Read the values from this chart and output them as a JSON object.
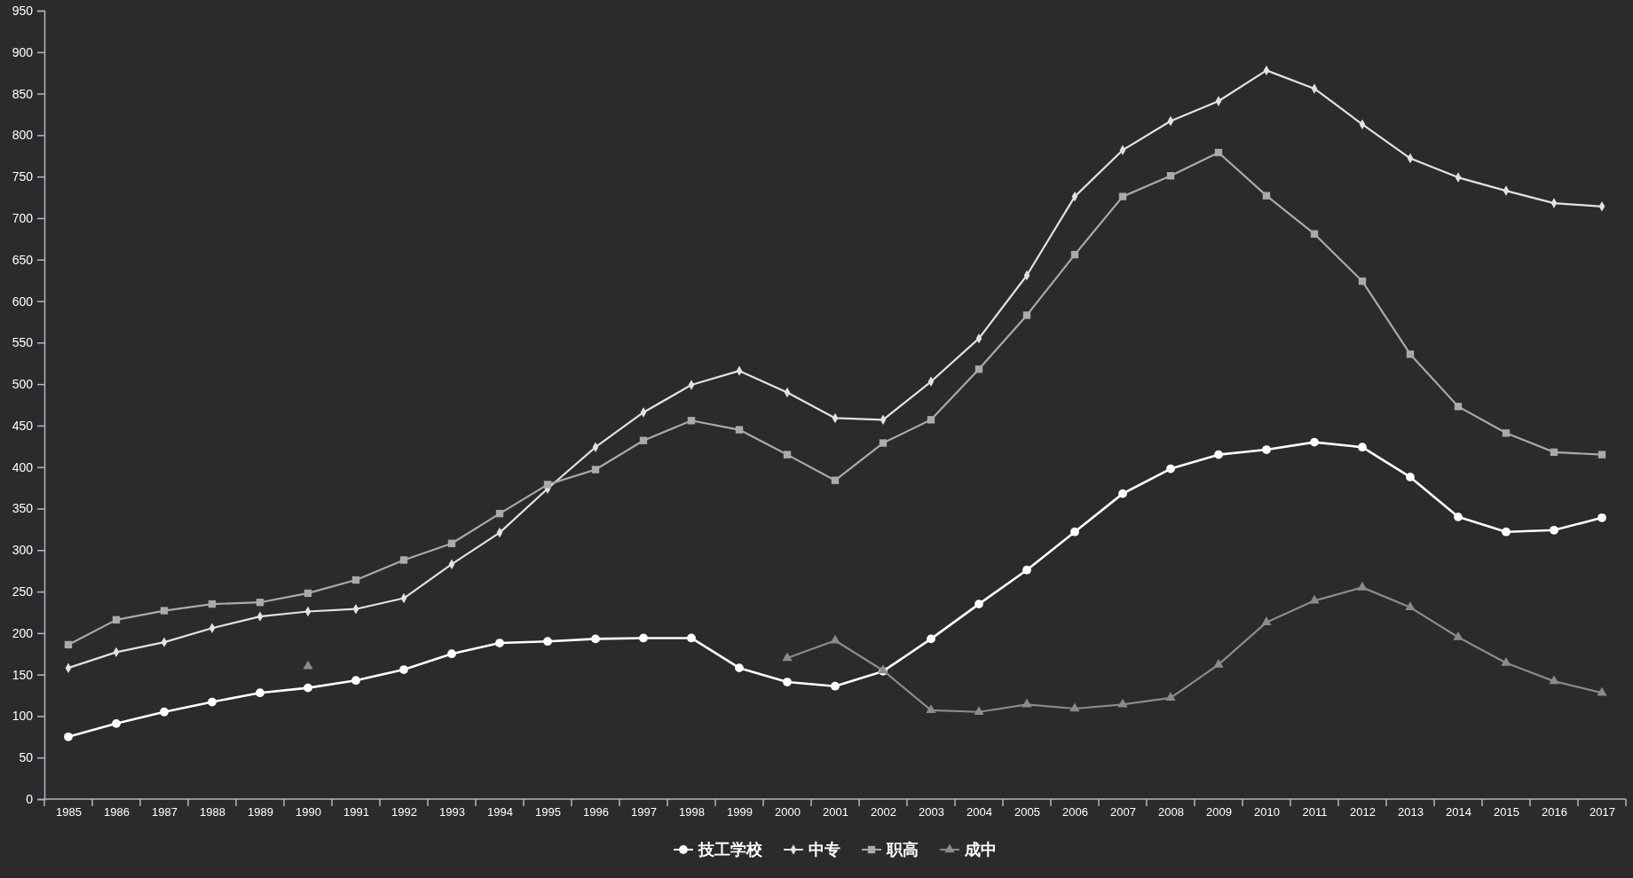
{
  "chart_data": {
    "type": "line",
    "categories": [
      "1985",
      "1986",
      "1987",
      "1988",
      "1989",
      "1990",
      "1991",
      "1992",
      "1993",
      "1994",
      "1995",
      "1996",
      "1997",
      "1998",
      "1999",
      "2000",
      "2001",
      "2002",
      "2003",
      "2004",
      "2005",
      "2006",
      "2007",
      "2008",
      "2009",
      "2010",
      "2011",
      "2012",
      "2013",
      "2014",
      "2015",
      "2016",
      "2017"
    ],
    "series": [
      {
        "name": "技工学校",
        "color": "#ffffff",
        "marker": "circle",
        "values": [
          75,
          91,
          105,
          117,
          128,
          134,
          143,
          156,
          175,
          188,
          190,
          193,
          194,
          194,
          158,
          141,
          136,
          154,
          193,
          235,
          276,
          322,
          368,
          398,
          415,
          421,
          430,
          424,
          388,
          340,
          322,
          324,
          339
        ]
      },
      {
        "name": "中专",
        "color": "#e2e2e2",
        "marker": "diamond",
        "values": [
          158,
          177,
          189,
          206,
          220,
          226,
          229,
          242,
          283,
          321,
          374,
          424,
          466,
          499,
          516,
          490,
          459,
          457,
          503,
          555,
          631,
          726,
          782,
          817,
          841,
          878,
          856,
          813,
          772,
          749,
          733,
          718,
          714
        ]
      },
      {
        "name": "职高",
        "color": "#aaaaaa",
        "marker": "square",
        "values": [
          186,
          216,
          227,
          235,
          237,
          248,
          264,
          288,
          308,
          344,
          379,
          397,
          432,
          456,
          445,
          415,
          384,
          429,
          457,
          518,
          583,
          656,
          726,
          751,
          779,
          727,
          681,
          624,
          536,
          473,
          441,
          418,
          415
        ]
      },
      {
        "name": "成中",
        "color": "#8c8c86",
        "marker": "triangle",
        "values": [
          null,
          null,
          null,
          null,
          null,
          160,
          null,
          null,
          null,
          null,
          null,
          null,
          null,
          null,
          null,
          170,
          191,
          155,
          107,
          105,
          114,
          109,
          114,
          122,
          162,
          213,
          239,
          255,
          231,
          195,
          164,
          142,
          128
        ]
      }
    ],
    "ylim": [
      0,
      950
    ],
    "yticks": [
      0,
      50,
      100,
      150,
      200,
      250,
      300,
      350,
      400,
      450,
      500,
      550,
      600,
      650,
      700,
      750,
      800,
      850,
      900,
      950
    ],
    "legend": "bottom"
  }
}
